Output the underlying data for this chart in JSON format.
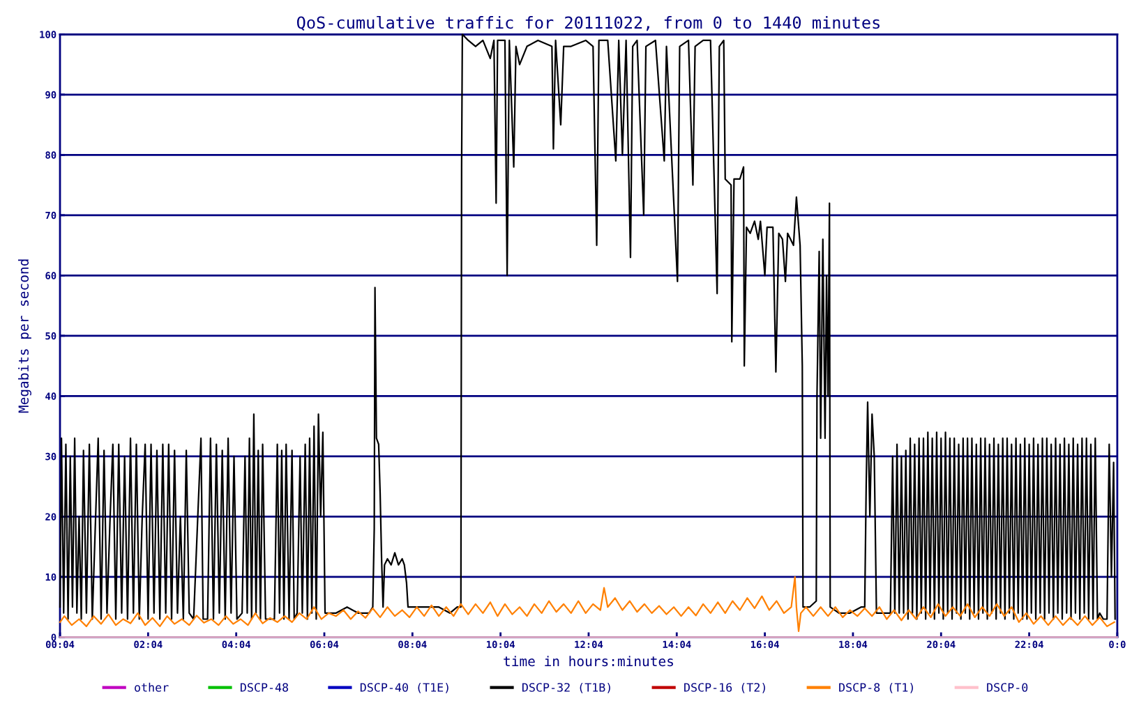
{
  "chart_data": {
    "type": "line",
    "title": "QoS-cumulative traffic for 20111022, from 0 to 1440 minutes",
    "xlabel": "time in hours:minutes",
    "ylabel": "Megabits per second",
    "xlim": [
      4,
      1444
    ],
    "xticks": [
      {
        "value": 4,
        "label": "00:04"
      },
      {
        "value": 124,
        "label": "02:04"
      },
      {
        "value": 244,
        "label": "04:04"
      },
      {
        "value": 364,
        "label": "06:04"
      },
      {
        "value": 484,
        "label": "08:04"
      },
      {
        "value": 604,
        "label": "10:04"
      },
      {
        "value": 724,
        "label": "12:04"
      },
      {
        "value": 844,
        "label": "14:04"
      },
      {
        "value": 964,
        "label": "16:04"
      },
      {
        "value": 1084,
        "label": "18:04"
      },
      {
        "value": 1204,
        "label": "20:04"
      },
      {
        "value": 1324,
        "label": "22:04"
      },
      {
        "value": 1444,
        "label": "0:0"
      }
    ],
    "ylim": [
      0,
      100
    ],
    "yticks": [
      0,
      10,
      20,
      30,
      40,
      50,
      60,
      70,
      80,
      90,
      100
    ],
    "grid": "y",
    "legend": "bottom",
    "line_style": "solid",
    "marker": "none",
    "series": [
      {
        "name": "other",
        "color": "#c000c0"
      },
      {
        "name": "DSCP-48",
        "color": "#00c000"
      },
      {
        "name": "DSCP-40 (T1E)",
        "color": "#0000c0"
      },
      {
        "name": "DSCP-32 (T1B)",
        "color": "#000000",
        "x": [
          4,
          6,
          9,
          12,
          15,
          18,
          21,
          24,
          27,
          30,
          33,
          36,
          40,
          44,
          48,
          52,
          56,
          60,
          64,
          68,
          72,
          76,
          80,
          84,
          88,
          92,
          96,
          100,
          104,
          108,
          112,
          116,
          120,
          124,
          128,
          132,
          136,
          140,
          144,
          148,
          152,
          156,
          160,
          164,
          168,
          172,
          176,
          180,
          186,
          196,
          199,
          205,
          209,
          213,
          217,
          221,
          225,
          229,
          233,
          237,
          241,
          245,
          252,
          256,
          259,
          262,
          265,
          268,
          271,
          274,
          277,
          280,
          284,
          290,
          296,
          300,
          303,
          306,
          309,
          312,
          316,
          320,
          323,
          327,
          331,
          334,
          338,
          341,
          344,
          347,
          350,
          353,
          356,
          359,
          362,
          365,
          370,
          380,
          395,
          410,
          425,
          430,
          432,
          433,
          435,
          438,
          440,
          442,
          444,
          446,
          450,
          455,
          460,
          465,
          470,
          473,
          476,
          478,
          490,
          505,
          520,
          535,
          545,
          550,
          551,
          552,
          560,
          570,
          580,
          590,
          595,
          598,
          600,
          610,
          613,
          616,
          622,
          625,
          630,
          640,
          655,
          674,
          676,
          679,
          686,
          690,
          700,
          720,
          730,
          735,
          738,
          750,
          761,
          765,
          770,
          775,
          781,
          784,
          790,
          799,
          802,
          815,
          827,
          830,
          845,
          848,
          860,
          866,
          869,
          880,
          890,
          899,
          902,
          908,
          910,
          918,
          919,
          922,
          930,
          935,
          936,
          939,
          944,
          950,
          955,
          958,
          964,
          967,
          975,
          979,
          983,
          988,
          992,
          995,
          1003,
          1007,
          1012,
          1015,
          1016,
          1025,
          1034,
          1035,
          1038,
          1040,
          1043,
          1046,
          1048,
          1050,
          1052,
          1053,
          1065,
          1080,
          1095,
          1100,
          1102,
          1104,
          1107,
          1110,
          1113,
          1116,
          1125,
          1135,
          1138,
          1141,
          1144,
          1147,
          1150,
          1153,
          1156,
          1159,
          1162,
          1165,
          1168,
          1171,
          1174,
          1177,
          1180,
          1183,
          1186,
          1189,
          1192,
          1195,
          1198,
          1201,
          1204,
          1207,
          1210,
          1213,
          1216,
          1219,
          1222,
          1225,
          1228,
          1231,
          1234,
          1237,
          1240,
          1243,
          1246,
          1249,
          1252,
          1255,
          1258,
          1261,
          1264,
          1267,
          1270,
          1273,
          1276,
          1279,
          1282,
          1285,
          1288,
          1291,
          1294,
          1297,
          1300,
          1303,
          1306,
          1309,
          1312,
          1315,
          1318,
          1321,
          1324,
          1327,
          1330,
          1333,
          1336,
          1339,
          1342,
          1345,
          1348,
          1351,
          1354,
          1357,
          1360,
          1363,
          1366,
          1369,
          1372,
          1375,
          1378,
          1381,
          1384,
          1387,
          1390,
          1393,
          1396,
          1399,
          1402,
          1405,
          1408,
          1411,
          1414,
          1417,
          1420,
          1425,
          1430,
          1433,
          1436,
          1439,
          1441
        ],
        "values": [
          5,
          33,
          4,
          32,
          3,
          30,
          5,
          33,
          4,
          20,
          3,
          31,
          4,
          32,
          3,
          18,
          33,
          3,
          31,
          4,
          19,
          32,
          3,
          32,
          4,
          30,
          3,
          33,
          4,
          32,
          3,
          20,
          32,
          3,
          32,
          4,
          31,
          3,
          32,
          4,
          32,
          3,
          31,
          4,
          20,
          3,
          31,
          4,
          3,
          33,
          3,
          3,
          33,
          3,
          32,
          4,
          31,
          3,
          33,
          4,
          30,
          3,
          4,
          30,
          4,
          33,
          3,
          37,
          4,
          31,
          3,
          32,
          3,
          3,
          3,
          32,
          4,
          31,
          3,
          32,
          3,
          31,
          3,
          4,
          30,
          4,
          32,
          3,
          33,
          4,
          35,
          3,
          37,
          20,
          34,
          4,
          4,
          4,
          5,
          4,
          4,
          5,
          18,
          58,
          33,
          32,
          24,
          13,
          5,
          12,
          13,
          12,
          14,
          12,
          13,
          12,
          9,
          5,
          5,
          5,
          5,
          4,
          5,
          5,
          78,
          100,
          99,
          98,
          99,
          96,
          99,
          72,
          99,
          99,
          60,
          99,
          78,
          98,
          95,
          98,
          99,
          98,
          81,
          99,
          85,
          98,
          98,
          99,
          98,
          65,
          99,
          99,
          79,
          99,
          80,
          99,
          63,
          98,
          99,
          70,
          98,
          99,
          79,
          98,
          59,
          98,
          99,
          75,
          98,
          99,
          99,
          57,
          98,
          99,
          76,
          75,
          49,
          76,
          76,
          78,
          45,
          68,
          67,
          69,
          66,
          69,
          60,
          68,
          68,
          44,
          67,
          66,
          59,
          67,
          65,
          73,
          65,
          45,
          5,
          5,
          6,
          40,
          64,
          33,
          66,
          33,
          60,
          40,
          72,
          5,
          4,
          4,
          5,
          5,
          25,
          39,
          20,
          37,
          30,
          4,
          4,
          4,
          30,
          4,
          32,
          4,
          30,
          4,
          31,
          3,
          33,
          4,
          32,
          3,
          33,
          4,
          33,
          3,
          34,
          4,
          33,
          3,
          34,
          4,
          33,
          3,
          34,
          4,
          33,
          3,
          33,
          4,
          32,
          3,
          33,
          4,
          33,
          3,
          33,
          4,
          32,
          3,
          33,
          4,
          33,
          3,
          32,
          4,
          33,
          3,
          32,
          4,
          33,
          3,
          33,
          4,
          32,
          3,
          33,
          4,
          32,
          3,
          33,
          3,
          32,
          4,
          33,
          3,
          32,
          4,
          33,
          3,
          33,
          4,
          32,
          3,
          33,
          4,
          32,
          3,
          33,
          4,
          32,
          3,
          33,
          4,
          32,
          3,
          33,
          4,
          33,
          3,
          32,
          3,
          33,
          3,
          4,
          3,
          3,
          32,
          10,
          29,
          3
        ]
      },
      {
        "name": "DSCP-16 (T2)",
        "color": "#c00000"
      },
      {
        "name": "DSCP-8 (T1)",
        "color": "#ff8000",
        "x": [
          4,
          10,
          20,
          30,
          40,
          50,
          60,
          70,
          80,
          90,
          100,
          110,
          120,
          130,
          140,
          150,
          160,
          170,
          180,
          190,
          200,
          210,
          220,
          230,
          240,
          250,
          260,
          270,
          280,
          290,
          300,
          310,
          320,
          330,
          340,
          350,
          360,
          370,
          380,
          390,
          400,
          410,
          420,
          430,
          440,
          450,
          460,
          470,
          480,
          490,
          500,
          510,
          520,
          530,
          540,
          550,
          560,
          570,
          580,
          590,
          600,
          610,
          620,
          630,
          640,
          650,
          660,
          670,
          680,
          690,
          700,
          710,
          720,
          730,
          740,
          745,
          750,
          760,
          770,
          780,
          790,
          800,
          810,
          820,
          830,
          840,
          850,
          860,
          870,
          880,
          890,
          900,
          910,
          920,
          930,
          940,
          950,
          960,
          970,
          980,
          990,
          1000,
          1005,
          1007,
          1010,
          1013,
          1020,
          1030,
          1040,
          1050,
          1060,
          1070,
          1080,
          1090,
          1100,
          1110,
          1120,
          1130,
          1140,
          1150,
          1160,
          1170,
          1180,
          1190,
          1200,
          1210,
          1220,
          1230,
          1240,
          1250,
          1260,
          1270,
          1280,
          1290,
          1300,
          1310,
          1320,
          1330,
          1340,
          1350,
          1360,
          1370,
          1380,
          1390,
          1400,
          1410,
          1420,
          1430,
          1440
        ],
        "values": [
          2.5,
          3.5,
          2,
          3,
          1.8,
          3.5,
          2.2,
          3.8,
          2,
          3,
          2.3,
          4,
          2,
          3.2,
          1.8,
          3.5,
          2.2,
          3,
          2,
          3.6,
          2.4,
          3,
          2,
          3.5,
          2.2,
          3,
          2,
          4,
          2.3,
          3.2,
          2.5,
          3.5,
          2.5,
          4,
          3,
          5,
          3,
          4,
          3.5,
          4.5,
          3,
          4.3,
          3.2,
          4.8,
          3.3,
          5,
          3.5,
          4.5,
          3.3,
          5,
          3.5,
          5.3,
          3.5,
          5,
          3.5,
          5.5,
          3.8,
          5.5,
          4,
          5.8,
          3.5,
          5.5,
          3.8,
          5,
          3.5,
          5.5,
          4,
          6,
          4.2,
          5.5,
          4,
          6,
          4,
          5.5,
          4.5,
          8.2,
          5,
          6.5,
          4.5,
          6,
          4.2,
          5.5,
          4,
          5.2,
          3.8,
          5,
          3.5,
          5,
          3.6,
          5.5,
          4,
          5.8,
          4,
          6,
          4.5,
          6.5,
          4.8,
          6.8,
          4.5,
          6,
          4,
          5,
          10,
          5,
          1,
          4,
          5,
          3.5,
          5,
          3.5,
          5,
          3.3,
          4.5,
          3.5,
          4.8,
          3.5,
          5,
          3,
          4.5,
          2.8,
          4.5,
          3,
          5,
          3.3,
          5.5,
          3.5,
          5,
          3.5,
          5.5,
          3.3,
          5,
          3.5,
          5.5,
          3.5,
          5,
          2.5,
          4,
          2.2,
          3.5,
          2,
          3.5,
          2,
          3.3,
          2,
          3.5,
          2,
          3.3,
          1.8,
          2.5
        ]
      },
      {
        "name": "DSCP-0",
        "color": "#ffc0cb",
        "x": [
          4,
          1444
        ],
        "values": [
          0,
          0
        ]
      }
    ]
  }
}
